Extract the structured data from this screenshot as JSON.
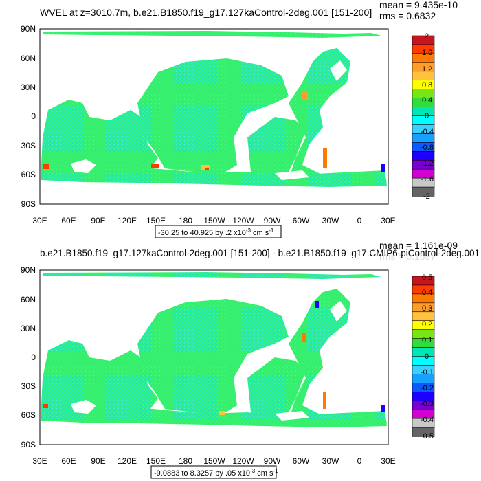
{
  "panels": [
    {
      "title": "WVEL at z=3010.7m, b.e21.B1850.f19_g17.127kaControl-2deg.001 [151-200]",
      "stats_mean": "mean = 9.435e-10",
      "stats_rms": "rms = 0.6832",
      "range_text": "-30.25 to 40.925 by .2 x10",
      "range_exp": "-3",
      "range_unit": " cm s",
      "range_unit_exp": "-1",
      "colorbar_labels": [
        "2",
        "1.6",
        "1.2",
        "0.8",
        "0.4",
        "0",
        "-0.4",
        "-0.8",
        "-1.2",
        "-1.6",
        "-2"
      ]
    },
    {
      "title": "b.e21.B1850.f19_g17.127kaControl-2deg.001 [151-200] - b.e21.B1850.f19_g17.CMIP6-piControl-2deg.001",
      "stats_mean": "mean = 1.161e-09",
      "stats_rms": "rms = 0.1697",
      "range_text": "-9.0883 to 8.3257 by .05 x10",
      "range_exp": "-3",
      "range_unit": " cm s",
      "range_unit_exp": "-1",
      "colorbar_labels": [
        "0.5",
        "0.4",
        "0.3",
        "0.2",
        "0.1",
        "0",
        "-0.1",
        "-0.2",
        "-0.3",
        "-0.4",
        "-0.5"
      ]
    }
  ],
  "lat_labels": [
    "90N",
    "60N",
    "30N",
    "0",
    "30S",
    "60S",
    "90S"
  ],
  "lon_labels": [
    "30E",
    "60E",
    "90E",
    "120E",
    "150E",
    "180",
    "150W",
    "120W",
    "90W",
    "60W",
    "30W",
    "0",
    "30E"
  ],
  "colorbar_colors": [
    "#c8141e",
    "#ff3c00",
    "#ff7a00",
    "#ff9c2a",
    "#ffc23c",
    "#ffff00",
    "#78e614",
    "#32dc3c",
    "#00e6b4",
    "#00ffff",
    "#3cd0ff",
    "#18a0ff",
    "#0a5aff",
    "#1e00ff",
    "#7800d2",
    "#d200d2",
    "#c8c8c8",
    "#646464"
  ],
  "field_colors": {
    "main": "#38f070",
    "alt": "#20e6c0",
    "speck": "#44f6a0"
  }
}
